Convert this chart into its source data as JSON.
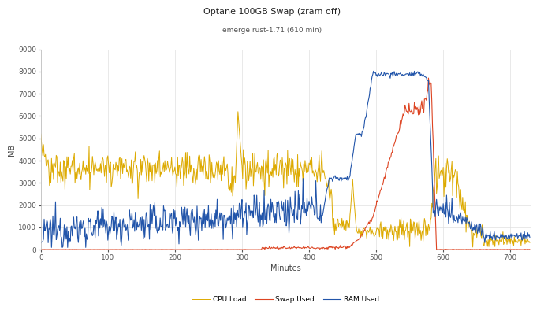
{
  "title": "Optane 100GB Swap (zram off)",
  "subtitle": "emerge rust-1.71 (610 min)",
  "xlabel": "Minutes",
  "ylabel": "MB",
  "xlim": [
    0,
    730
  ],
  "ylim": [
    0,
    9000
  ],
  "yticks": [
    0,
    1000,
    2000,
    3000,
    4000,
    5000,
    6000,
    7000,
    8000,
    9000
  ],
  "xticks": [
    0,
    100,
    200,
    300,
    400,
    500,
    600,
    700
  ],
  "legend": [
    "RAM Used",
    "Swap Used",
    "CPU Load"
  ],
  "colors": {
    "ram": "#2255aa",
    "swap": "#dd4422",
    "cpu": "#ddaa00"
  },
  "background": "#ffffff",
  "grid_color": "#e0e0e0"
}
